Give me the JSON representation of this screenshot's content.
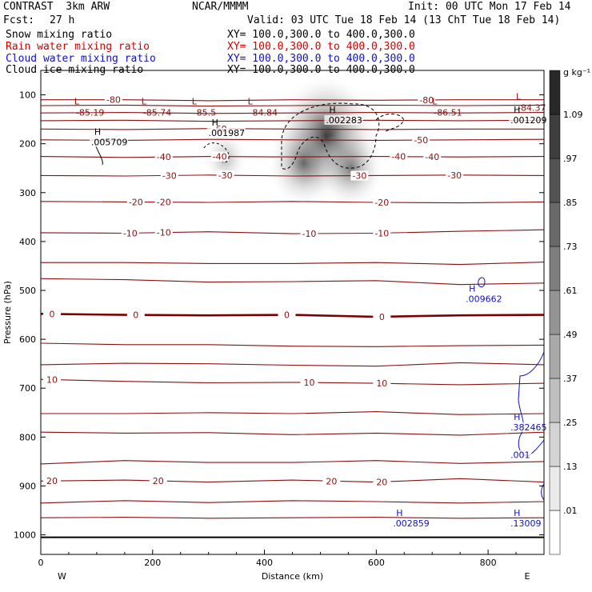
{
  "header": {
    "title": "CONTRAST  3km ARW",
    "center": "NCAR/MMMM",
    "init": "Init: 00 UTC Mon 17 Feb 14",
    "fcst_label": "Fcst:",
    "fcst_value": "27 h",
    "valid": "Valid: 03 UTC Tue 18 Feb 14 (13 ChT Tue 18 Feb 14)"
  },
  "fields": [
    {
      "name": "Snow mixing ratio",
      "xy": "XY= 100.0,300.0 to 400.0,300.0",
      "color": "#000000"
    },
    {
      "name": "Rain water mixing ratio",
      "xy": "XY= 100.0,300.0 to 400.0,300.0",
      "color": "#d40000"
    },
    {
      "name": "Cloud water mixing ratio",
      "xy": "XY= 100.0,300.0 to 400.0,300.0",
      "color": "#1010c8"
    },
    {
      "name": "Cloud ice mixing ratio",
      "xy": "XY= 100.0,300.0 to 400.0,300.0",
      "color": "#000000"
    }
  ],
  "chart_data": {
    "type": "heatmap",
    "xlabel": "Distance (km)",
    "ylabel": "Pressure (hPa)",
    "xlim": [
      0,
      900
    ],
    "ylim": [
      1040,
      50
    ],
    "xticks": [
      "0",
      "200",
      "400",
      "600",
      "800"
    ],
    "xtick_values": [
      0,
      200,
      400,
      600,
      800
    ],
    "yticks": [
      "100",
      "200",
      "300",
      "400",
      "500",
      "600",
      "700",
      "800",
      "900",
      "1000"
    ],
    "ytick_values": [
      100,
      200,
      300,
      400,
      500,
      600,
      700,
      800,
      900,
      1000
    ],
    "left_end_label": "W",
    "right_end_label": "E",
    "colorbar": {
      "unit": "g kg⁻¹",
      "levels": [
        ".01",
        ".13",
        ".25",
        ".37",
        ".49",
        ".61",
        ".73",
        ".85",
        ".97",
        "1.09"
      ],
      "level_values": [
        0.01,
        0.13,
        0.25,
        0.37,
        0.49,
        0.61,
        0.73,
        0.85,
        0.97,
        1.09
      ]
    },
    "snow_shading": [
      {
        "x": 510,
        "p": 185,
        "value": 1.09
      },
      {
        "x": 470,
        "p": 240,
        "value": 0.6
      },
      {
        "x": 555,
        "p": 250,
        "value": 0.5
      },
      {
        "x": 330,
        "p": 230,
        "value": 0.15
      }
    ],
    "temperature_contours": {
      "color": "#8b1010",
      "zero_line_color": "#7a0000",
      "lines": [
        {
          "p": [
            110,
            110,
            112,
            110,
            111,
            110,
            110
          ],
          "label": "-80",
          "labels_x": [
            130,
            690
          ]
        },
        {
          "p": [
            122,
            121,
            123,
            122,
            121,
            122,
            121
          ],
          "label": "",
          "labels_x": []
        },
        {
          "p": [
            137,
            136,
            138,
            137,
            136,
            137,
            136
          ],
          "label": "",
          "labels_x": []
        },
        {
          "p": [
            153,
            152,
            154,
            153,
            152,
            153,
            152
          ],
          "label": "",
          "labels_x": []
        },
        {
          "p": [
            170,
            171,
            169,
            170,
            171,
            170,
            170
          ],
          "label": "-60",
          "labels_x": [
            320
          ]
        },
        {
          "p": [
            192,
            193,
            191,
            192,
            193,
            192,
            191
          ],
          "label": "-50",
          "labels_x": [
            680
          ]
        },
        {
          "p": [
            226,
            228,
            226,
            227,
            226,
            227,
            226
          ],
          "label": "-40",
          "labels_x": [
            220,
            320,
            640,
            700
          ]
        },
        {
          "p": [
            265,
            266,
            264,
            266,
            265,
            264,
            265
          ],
          "label": "-30",
          "labels_x": [
            230,
            330,
            570,
            740
          ]
        },
        {
          "p": [
            318,
            319,
            320,
            318,
            320,
            321,
            319
          ],
          "label": "-20",
          "labels_x": [
            170,
            220,
            610
          ]
        },
        {
          "p": [
            382,
            383,
            380,
            384,
            383,
            379,
            376
          ],
          "label": "-10",
          "labels_x": [
            160,
            220,
            480,
            610
          ]
        },
        {
          "p": [
            443,
            443,
            445,
            445,
            443,
            447,
            442
          ],
          "label": "",
          "labels_x": []
        },
        {
          "p": [
            476,
            478,
            483,
            482,
            480,
            488,
            485
          ],
          "label": "",
          "labels_x": []
        },
        {
          "p": [
            548,
            550,
            551,
            550,
            554,
            551,
            550
          ],
          "label": "0",
          "labels_x": [
            20,
            170,
            440,
            610
          ]
        },
        {
          "p": [
            608,
            611,
            611,
            614,
            615,
            613,
            612
          ],
          "label": "",
          "labels_x": []
        },
        {
          "p": [
            652,
            649,
            650,
            653,
            655,
            648,
            652
          ],
          "label": "",
          "labels_x": []
        },
        {
          "p": [
            682,
            686,
            689,
            688,
            690,
            693,
            690
          ],
          "label": "10",
          "labels_x": [
            20,
            480,
            610
          ]
        },
        {
          "p": [
            752,
            752,
            750,
            752,
            748,
            754,
            752
          ],
          "label": "",
          "labels_x": []
        },
        {
          "p": [
            790,
            792,
            791,
            795,
            792,
            796,
            790
          ],
          "label": "",
          "labels_x": []
        },
        {
          "p": [
            855,
            848,
            852,
            852,
            848,
            854,
            850
          ],
          "label": "",
          "labels_x": []
        },
        {
          "p": [
            890,
            888,
            892,
            888,
            892,
            885,
            892
          ],
          "label": "20",
          "labels_x": [
            20,
            210,
            520,
            610
          ]
        },
        {
          "p": [
            935,
            930,
            934,
            930,
            932,
            935,
            932
          ],
          "label": "",
          "labels_x": []
        },
        {
          "p": [
            965,
            964,
            966,
            965,
            964,
            966,
            965
          ],
          "label": "",
          "labels_x": []
        }
      ]
    },
    "surface_line_p": 1005,
    "temperature_top_labels": [
      {
        "x": 60,
        "p": 100,
        "marker": "L",
        "value": "-85.19"
      },
      {
        "x": 180,
        "p": 100,
        "marker": "L",
        "value": "-85.74"
      },
      {
        "x": 270,
        "p": 100,
        "marker": "L",
        "value": "-85.5"
      },
      {
        "x": 370,
        "p": 100,
        "marker": "L",
        "value": "-84.84"
      },
      {
        "x": 700,
        "p": 100,
        "marker": "L",
        "value": "-86.51"
      },
      {
        "x": 850,
        "p": 90,
        "marker": "L",
        "value": "-84.37"
      }
    ],
    "maxima_labels": [
      {
        "x": 90,
        "p": 185,
        "marker": "H",
        "value": ".005709",
        "color": "#000000"
      },
      {
        "x": 300,
        "p": 166,
        "marker": "H",
        "value": ".001987",
        "color": "#000000"
      },
      {
        "x": 510,
        "p": 140,
        "marker": "H",
        "value": ".002283",
        "color": "#000000"
      },
      {
        "x": 840,
        "p": 140,
        "marker": "H",
        "value": ".001209",
        "color": "#000000"
      },
      {
        "x": 760,
        "p": 506,
        "marker": "H",
        "value": ".009662",
        "color": "#1010c8"
      },
      {
        "x": 840,
        "p": 768,
        "marker": "H",
        "value": ".382465",
        "color": "#1010c8"
      },
      {
        "x": 840,
        "p": 825,
        "marker": "",
        "value": ".001",
        "color": "#1010c8"
      },
      {
        "x": 630,
        "p": 965,
        "marker": "H",
        "value": ".002859",
        "color": "#1010c8"
      },
      {
        "x": 840,
        "p": 965,
        "marker": "H",
        "value": ".13009",
        "color": "#1010c8"
      }
    ]
  }
}
